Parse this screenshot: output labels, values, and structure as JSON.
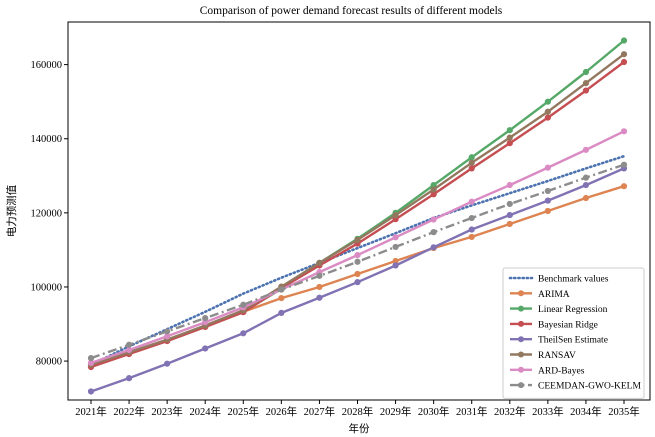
{
  "chart_data": {
    "type": "line",
    "title": "Comparison of power demand forecast results of different models",
    "xlabel": "年份",
    "ylabel": "电力预测值",
    "categories": [
      "2021年",
      "2022年",
      "2023年",
      "2024年",
      "2025年",
      "2026年",
      "2027年",
      "2028年",
      "2029年",
      "2030年",
      "2031年",
      "2032年",
      "2033年",
      "2034年",
      "2035年"
    ],
    "yticks": [
      80000,
      100000,
      120000,
      140000,
      160000
    ],
    "ytick_labels": [
      "80000",
      "100000",
      "120000",
      "140000",
      "160000"
    ],
    "ylim": [
      69500,
      171500
    ],
    "grid": false,
    "legend_position": "lower-right",
    "series": [
      {
        "name": "Benchmark values",
        "color": "#4c72b0",
        "style": "dotted",
        "marker": false,
        "values": [
          79000,
          84000,
          88600,
          93300,
          98200,
          102500,
          106500,
          110500,
          114500,
          118600,
          122000,
          125300,
          128600,
          132000,
          135300
        ]
      },
      {
        "name": "ARIMA",
        "color": "#dd8452",
        "style": "solid",
        "marker": true,
        "values": [
          78700,
          82000,
          85700,
          89500,
          93300,
          97000,
          100000,
          103500,
          107000,
          110500,
          113500,
          117000,
          120500,
          124000,
          127200
        ]
      },
      {
        "name": "Linear Regression",
        "color": "#55a868",
        "style": "solid",
        "marker": true,
        "values": [
          78500,
          82000,
          85500,
          89300,
          93300,
          99500,
          106500,
          113000,
          120000,
          127500,
          135000,
          142300,
          150000,
          158000,
          166500
        ]
      },
      {
        "name": "Bayesian Ridge",
        "color": "#c44e52",
        "style": "solid",
        "marker": true,
        "values": [
          78400,
          81900,
          85400,
          89200,
          93200,
          99700,
          105800,
          111700,
          118300,
          125000,
          132000,
          138800,
          145700,
          153000,
          160700
        ]
      },
      {
        "name": "TheilSen Estimate",
        "color": "#8172b3",
        "style": "solid",
        "marker": true,
        "values": [
          71800,
          75400,
          79300,
          83400,
          87500,
          93000,
          97100,
          101300,
          105800,
          110700,
          115500,
          119400,
          123300,
          127500,
          132000
        ]
      },
      {
        "name": "RANSAV",
        "color": "#937860",
        "style": "solid",
        "marker": true,
        "values": [
          79000,
          82400,
          85800,
          89600,
          93700,
          100100,
          106500,
          112700,
          119400,
          126300,
          133500,
          140300,
          147300,
          155000,
          162800
        ]
      },
      {
        "name": "ARD-Bayes",
        "color": "#da8bc3",
        "style": "solid",
        "marker": true,
        "values": [
          79500,
          83000,
          86700,
          90500,
          94500,
          99300,
          104000,
          108600,
          113400,
          118200,
          123000,
          127500,
          132200,
          137000,
          142000
        ]
      },
      {
        "name": "CEEMDAN-GWO-KELM",
        "color": "#8c8c8c",
        "style": "dashdot",
        "marker": true,
        "values": [
          80800,
          84400,
          88000,
          91600,
          95200,
          99300,
          103000,
          106800,
          110800,
          114800,
          118600,
          122400,
          125900,
          129500,
          133000
        ]
      }
    ]
  }
}
